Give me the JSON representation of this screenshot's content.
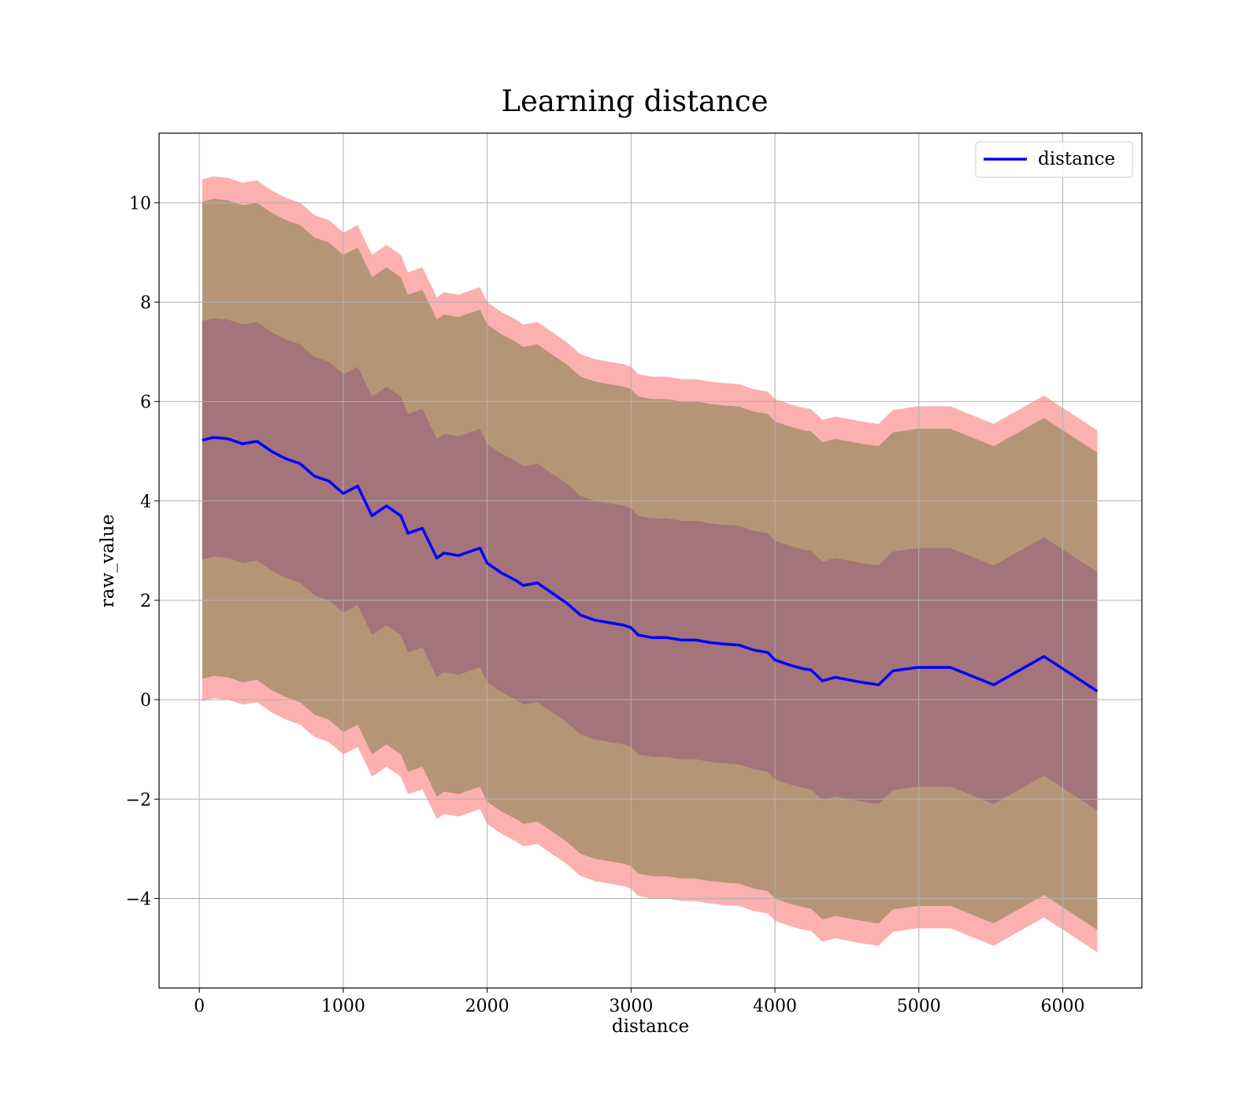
{
  "chart_data": {
    "type": "line",
    "title": "Learning distance",
    "xlabel": "distance",
    "ylabel": "raw_value",
    "xlim": [
      -280,
      6550
    ],
    "ylim": [
      -5.8,
      11.4
    ],
    "xticks": [
      0,
      1000,
      2000,
      3000,
      4000,
      5000,
      6000
    ],
    "xtick_labels": [
      "0",
      "1000",
      "2000",
      "3000",
      "4000",
      "5000",
      "6000"
    ],
    "yticks": [
      -4,
      -2,
      0,
      2,
      4,
      6,
      8,
      10
    ],
    "ytick_labels": [
      "−4",
      "−2",
      "0",
      "2",
      "4",
      "6",
      "8",
      "10"
    ],
    "grid": true,
    "legend": {
      "position": "top-right",
      "entries": [
        "distance"
      ]
    },
    "colors": {
      "line": "#0000ff",
      "band_3sigma": "#fb8e8e",
      "band_2sigma": "#a9916d",
      "band_1sigma": "#a0707a"
    },
    "x": [
      20,
      100,
      200,
      300,
      400,
      500,
      600,
      700,
      800,
      900,
      1000,
      1100,
      1200,
      1300,
      1400,
      1450,
      1550,
      1600,
      1650,
      1700,
      1800,
      1850,
      1900,
      1950,
      2000,
      2100,
      2200,
      2250,
      2350,
      2450,
      2550,
      2650,
      2750,
      2850,
      2950,
      3000,
      3050,
      3150,
      3250,
      3350,
      3450,
      3550,
      3650,
      3750,
      3850,
      3950,
      4000,
      4100,
      4200,
      4250,
      4330,
      4420,
      4600,
      4720,
      4820,
      4990,
      5220,
      5520,
      5870,
      6240
    ],
    "series": [
      {
        "name": "distance",
        "values": [
          5.22,
          5.28,
          5.25,
          5.15,
          5.2,
          5.0,
          4.85,
          4.75,
          4.5,
          4.4,
          4.15,
          4.3,
          3.7,
          3.9,
          3.7,
          3.35,
          3.45,
          3.15,
          2.85,
          2.95,
          2.9,
          2.95,
          3.0,
          3.05,
          2.75,
          2.55,
          2.4,
          2.3,
          2.35,
          2.15,
          1.95,
          1.7,
          1.6,
          1.55,
          1.5,
          1.45,
          1.3,
          1.25,
          1.25,
          1.2,
          1.2,
          1.15,
          1.12,
          1.1,
          1.0,
          0.95,
          0.8,
          0.7,
          0.62,
          0.6,
          0.38,
          0.45,
          0.35,
          0.3,
          0.58,
          0.65,
          0.65,
          0.3,
          0.87,
          0.17
        ]
      }
    ],
    "bands": [
      {
        "level": "3sigma",
        "half_width": 5.25
      },
      {
        "level": "2sigma",
        "half_width": 4.8
      },
      {
        "level": "1sigma",
        "half_width": 2.4
      }
    ]
  }
}
